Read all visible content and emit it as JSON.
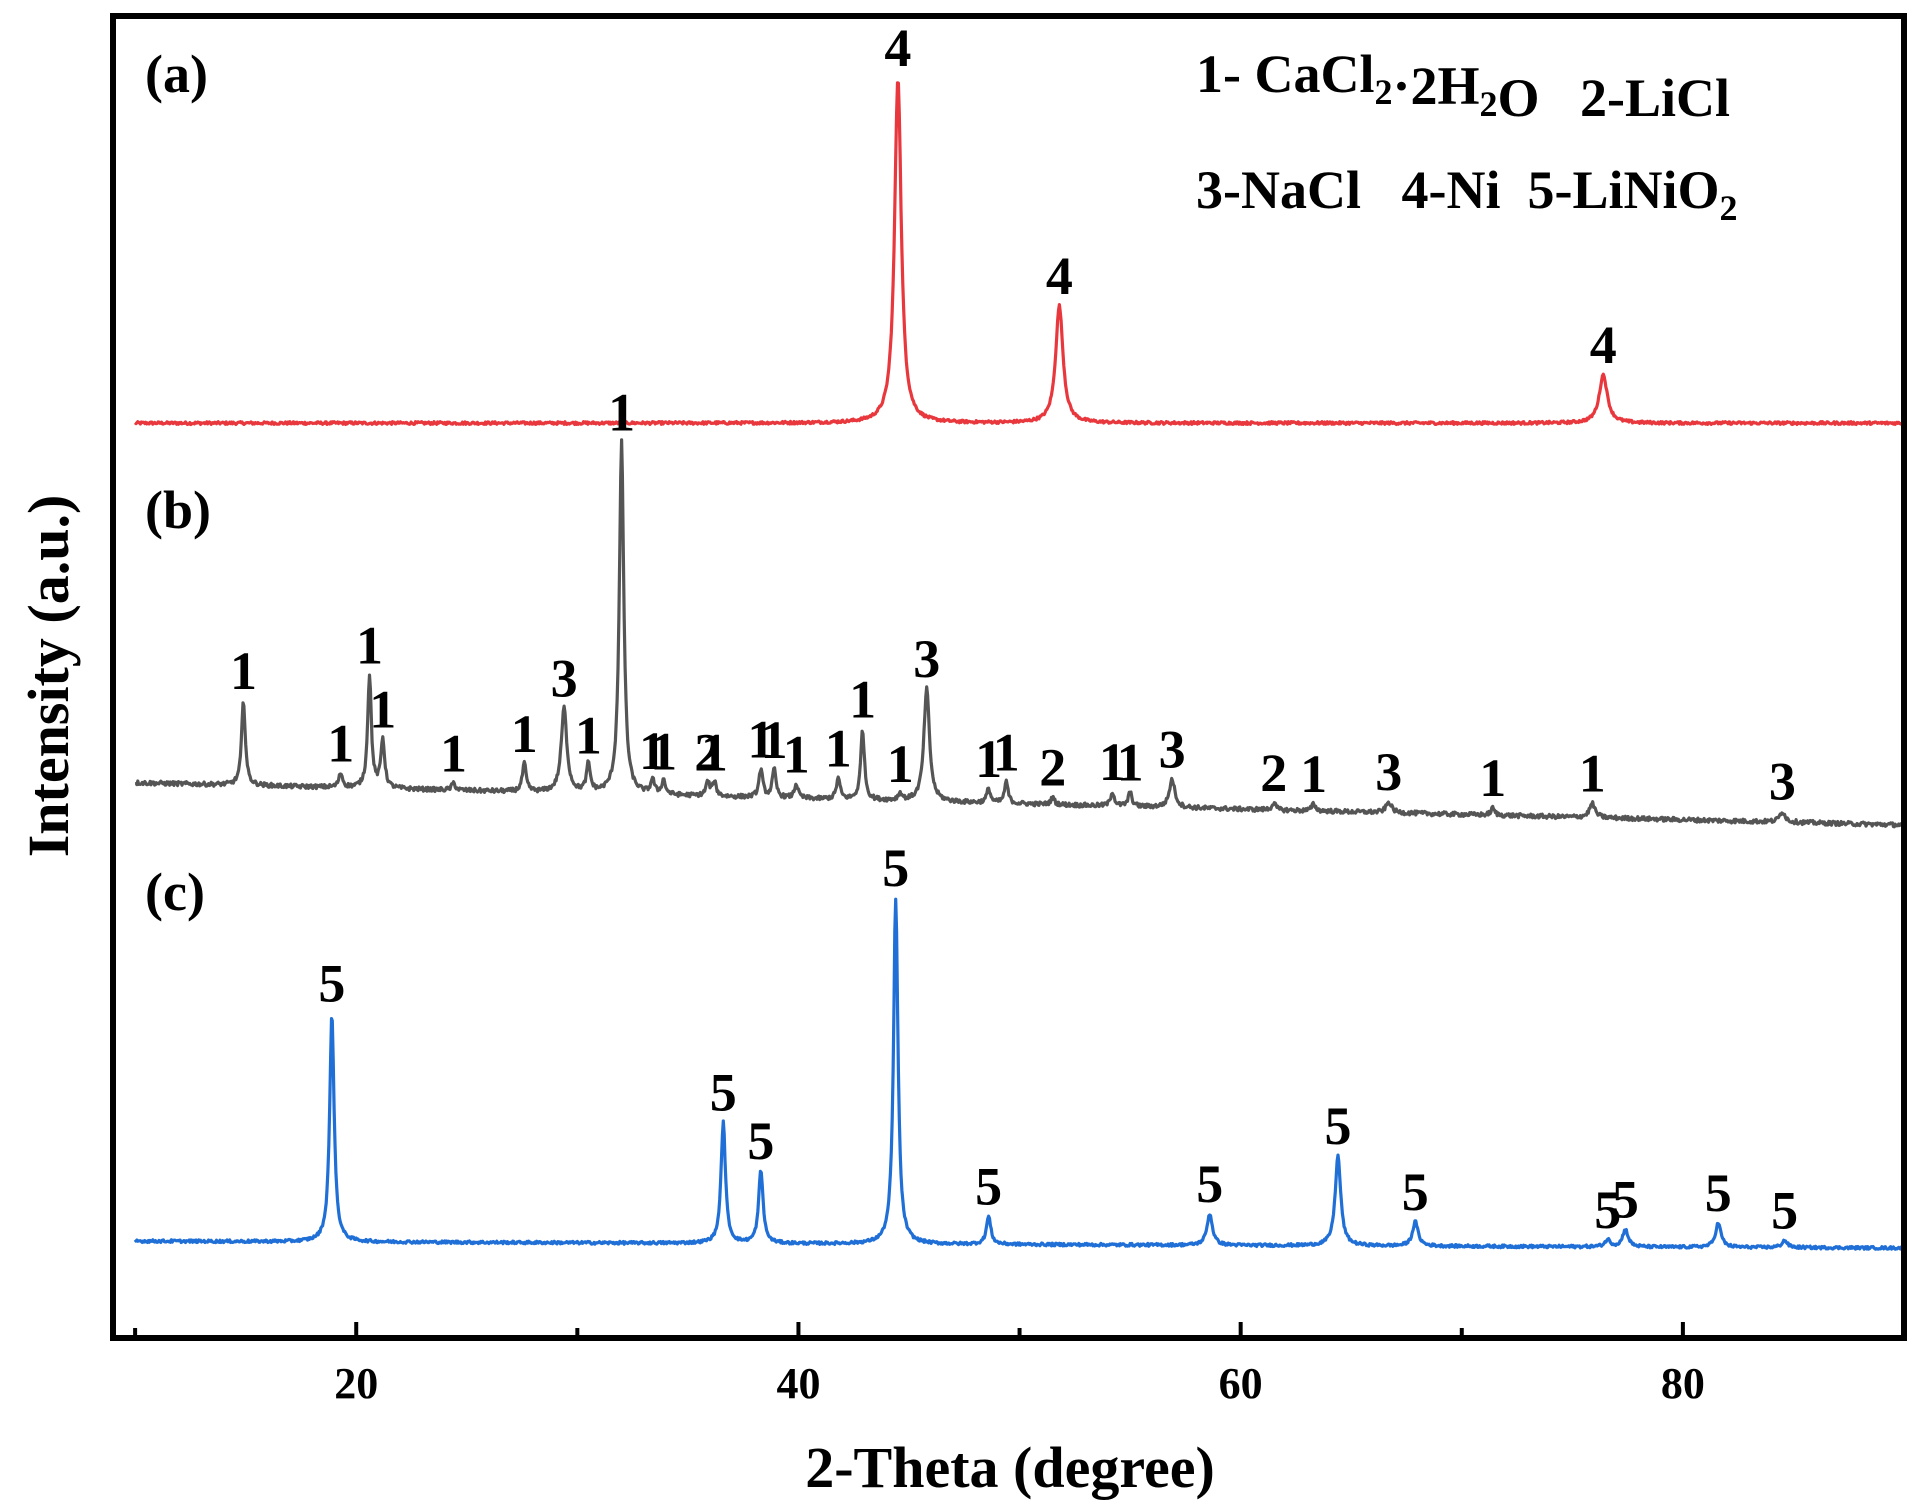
{
  "chart_data": {
    "type": "line",
    "xlabel": "2-Theta (degree)",
    "ylabel": "Intensity (a.u.)",
    "xlim": [
      9,
      90
    ],
    "xticks": [
      20,
      40,
      60,
      80
    ],
    "xtick_labels": [
      "20",
      "40",
      "60",
      "80"
    ],
    "grid": false,
    "y_ticks_shown": false,
    "legend": {
      "position": "top-right",
      "entries": [
        {
          "num": "1-",
          "text": " CaCl",
          "sub1": "2",
          "mid": "·2H",
          "sub2": "2",
          "end": "O"
        },
        {
          "num": "2-",
          "text": "LiCl"
        },
        {
          "num": "3-",
          "text": "NaCl"
        },
        {
          "num": "4-",
          "text": "Ni"
        },
        {
          "num": "5-",
          "text": "LiNiO",
          "sub1": "2"
        }
      ]
    },
    "series": [
      {
        "name": "(a)",
        "label": "(a)",
        "color": "#e8383d",
        "baseline": 0.02,
        "noise": 0.004,
        "peaks": [
          {
            "x": 44.5,
            "h": 1.0,
            "w": 0.18,
            "label": "4"
          },
          {
            "x": 51.8,
            "h": 0.34,
            "w": 0.2,
            "label": "4"
          },
          {
            "x": 76.4,
            "h": 0.14,
            "w": 0.22,
            "label": "4"
          }
        ]
      },
      {
        "name": "(b)",
        "label": "(b)",
        "color": "#555555",
        "baseline_start": 0.12,
        "baseline_end": 0.0,
        "noise": 0.006,
        "peaks": [
          {
            "x": 14.9,
            "h": 0.24,
            "w": 0.1,
            "label": "1"
          },
          {
            "x": 19.3,
            "h": 0.04,
            "w": 0.1,
            "label": "1"
          },
          {
            "x": 20.6,
            "h": 0.32,
            "w": 0.1,
            "label": "1"
          },
          {
            "x": 21.2,
            "h": 0.14,
            "w": 0.1,
            "label": "1"
          },
          {
            "x": 24.4,
            "h": 0.02,
            "w": 0.1,
            "label": "1"
          },
          {
            "x": 27.6,
            "h": 0.08,
            "w": 0.1,
            "label": "1"
          },
          {
            "x": 29.4,
            "h": 0.24,
            "w": 0.15,
            "label": "3"
          },
          {
            "x": 30.5,
            "h": 0.08,
            "w": 0.1,
            "label": "1"
          },
          {
            "x": 32.0,
            "h": 1.0,
            "w": 0.12,
            "label": "1"
          },
          {
            "x": 33.4,
            "h": 0.04,
            "w": 0.1,
            "label": "1"
          },
          {
            "x": 33.9,
            "h": 0.04,
            "w": 0.1,
            "label": "1"
          },
          {
            "x": 35.9,
            "h": 0.04,
            "w": 0.1,
            "label": "2"
          },
          {
            "x": 36.2,
            "h": 0.04,
            "w": 0.1,
            "label": "1"
          },
          {
            "x": 38.3,
            "h": 0.08,
            "w": 0.1,
            "label": "1"
          },
          {
            "x": 38.9,
            "h": 0.08,
            "w": 0.1,
            "label": "1"
          },
          {
            "x": 39.9,
            "h": 0.04,
            "w": 0.1,
            "label": "1"
          },
          {
            "x": 41.8,
            "h": 0.06,
            "w": 0.1,
            "label": "1"
          },
          {
            "x": 42.9,
            "h": 0.2,
            "w": 0.1,
            "label": "1"
          },
          {
            "x": 44.6,
            "h": 0.02,
            "w": 0.1,
            "label": "1"
          },
          {
            "x": 45.8,
            "h": 0.32,
            "w": 0.15,
            "label": "3"
          },
          {
            "x": 48.6,
            "h": 0.04,
            "w": 0.1,
            "label": "1"
          },
          {
            "x": 49.4,
            "h": 0.06,
            "w": 0.1,
            "label": "1"
          },
          {
            "x": 51.5,
            "h": 0.02,
            "w": 0.1,
            "label": "2"
          },
          {
            "x": 54.2,
            "h": 0.04,
            "w": 0.1,
            "label": "1"
          },
          {
            "x": 55.0,
            "h": 0.04,
            "w": 0.1,
            "label": "1"
          },
          {
            "x": 56.9,
            "h": 0.08,
            "w": 0.15,
            "label": "3"
          },
          {
            "x": 61.5,
            "h": 0.02,
            "w": 0.1,
            "label": "2"
          },
          {
            "x": 63.3,
            "h": 0.02,
            "w": 0.1,
            "label": "1"
          },
          {
            "x": 66.7,
            "h": 0.03,
            "w": 0.15,
            "label": "3"
          },
          {
            "x": 71.4,
            "h": 0.02,
            "w": 0.1,
            "label": "1"
          },
          {
            "x": 75.9,
            "h": 0.04,
            "w": 0.15,
            "label": "1"
          },
          {
            "x": 84.5,
            "h": 0.03,
            "w": 0.15,
            "label": "3"
          }
        ]
      },
      {
        "name": "(c)",
        "label": "(c)",
        "color": "#1f6fd6",
        "baseline_start": 0.02,
        "baseline_end": 0.0,
        "noise": 0.004,
        "peaks": [
          {
            "x": 18.9,
            "h": 0.66,
            "w": 0.12,
            "label": "5"
          },
          {
            "x": 36.6,
            "h": 0.35,
            "w": 0.12,
            "label": "5"
          },
          {
            "x": 38.3,
            "h": 0.21,
            "w": 0.12,
            "label": "5"
          },
          {
            "x": 44.4,
            "h": 1.0,
            "w": 0.12,
            "label": "5"
          },
          {
            "x": 48.6,
            "h": 0.08,
            "w": 0.12,
            "label": "5"
          },
          {
            "x": 58.6,
            "h": 0.09,
            "w": 0.15,
            "label": "5"
          },
          {
            "x": 64.4,
            "h": 0.26,
            "w": 0.15,
            "label": "5"
          },
          {
            "x": 67.9,
            "h": 0.07,
            "w": 0.15,
            "label": "5"
          },
          {
            "x": 76.6,
            "h": 0.02,
            "w": 0.15,
            "label": "5"
          },
          {
            "x": 77.4,
            "h": 0.05,
            "w": 0.15,
            "label": "5"
          },
          {
            "x": 81.6,
            "h": 0.07,
            "w": 0.15,
            "label": "5"
          },
          {
            "x": 84.6,
            "h": 0.02,
            "w": 0.15,
            "label": "5"
          }
        ]
      }
    ]
  }
}
